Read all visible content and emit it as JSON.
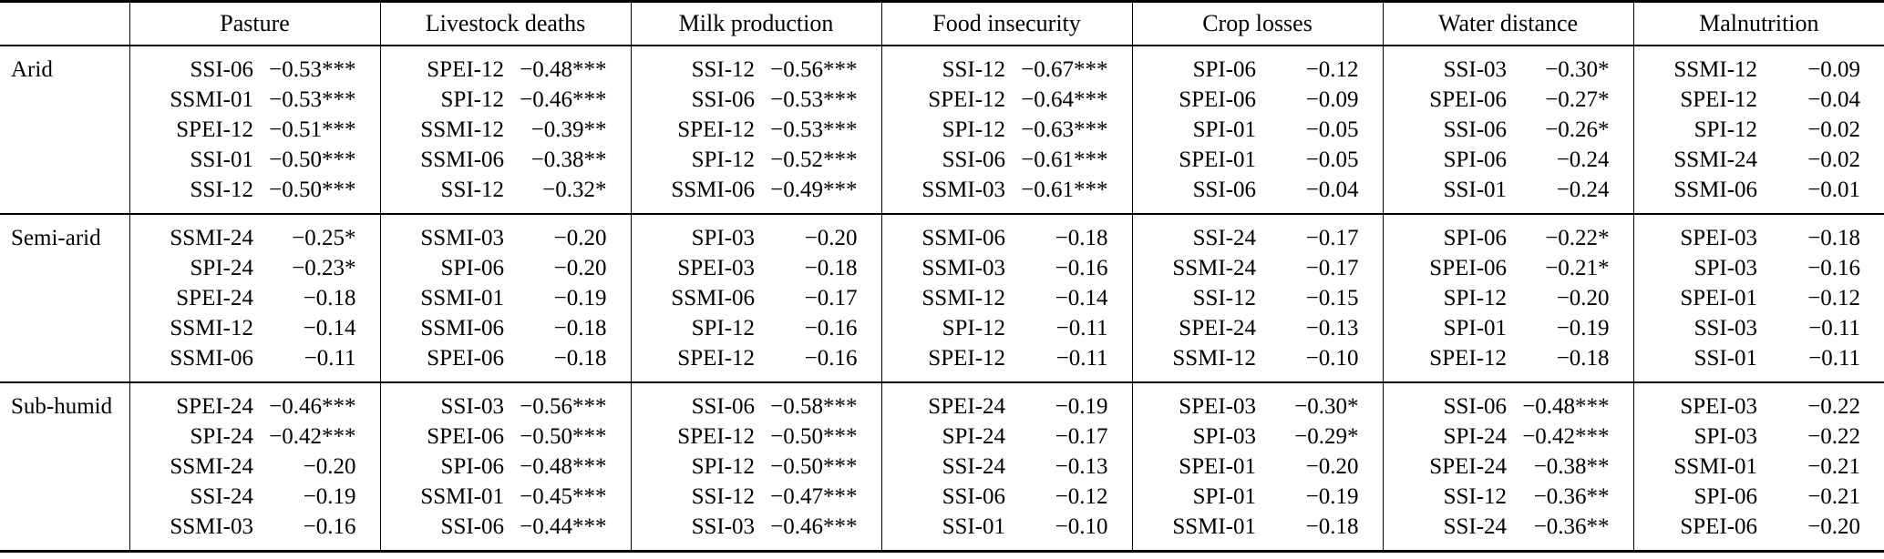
{
  "table": {
    "corner_label": "",
    "columns": [
      "Pasture",
      "Livestock deaths",
      "Milk production",
      "Food insecurity",
      "Crop losses",
      "Water distance",
      "Malnutrition"
    ],
    "groups": [
      {
        "label": "Arid",
        "rows": [
          [
            [
              "SSI-06",
              "−0.53***"
            ],
            [
              "SPEI-12",
              "−0.48***"
            ],
            [
              "SSI-12",
              "−0.56***"
            ],
            [
              "SSI-12",
              "−0.67***"
            ],
            [
              "SPI-06",
              "−0.12"
            ],
            [
              "SSI-03",
              "−0.30*"
            ],
            [
              "SSMI-12",
              "−0.09"
            ]
          ],
          [
            [
              "SSMI-01",
              "−0.53***"
            ],
            [
              "SPI-12",
              "−0.46***"
            ],
            [
              "SSI-06",
              "−0.53***"
            ],
            [
              "SPEI-12",
              "−0.64***"
            ],
            [
              "SPEI-06",
              "−0.09"
            ],
            [
              "SPEI-06",
              "−0.27*"
            ],
            [
              "SPEI-12",
              "−0.04"
            ]
          ],
          [
            [
              "SPEI-12",
              "−0.51***"
            ],
            [
              "SSMI-12",
              "−0.39**"
            ],
            [
              "SPEI-12",
              "−0.53***"
            ],
            [
              "SPI-12",
              "−0.63***"
            ],
            [
              "SPI-01",
              "−0.05"
            ],
            [
              "SSI-06",
              "−0.26*"
            ],
            [
              "SPI-12",
              "−0.02"
            ]
          ],
          [
            [
              "SSI-01",
              "−0.50***"
            ],
            [
              "SSMI-06",
              "−0.38**"
            ],
            [
              "SPI-12",
              "−0.52***"
            ],
            [
              "SSI-06",
              "−0.61***"
            ],
            [
              "SPEI-01",
              "−0.05"
            ],
            [
              "SPI-06",
              "−0.24"
            ],
            [
              "SSMI-24",
              "−0.02"
            ]
          ],
          [
            [
              "SSI-12",
              "−0.50***"
            ],
            [
              "SSI-12",
              "−0.32*"
            ],
            [
              "SSMI-06",
              "−0.49***"
            ],
            [
              "SSMI-03",
              "−0.61***"
            ],
            [
              "SSI-06",
              "−0.04"
            ],
            [
              "SSI-01",
              "−0.24"
            ],
            [
              "SSMI-06",
              "−0.01"
            ]
          ]
        ]
      },
      {
        "label": "Semi-arid",
        "rows": [
          [
            [
              "SSMI-24",
              "−0.25*"
            ],
            [
              "SSMI-03",
              "−0.20"
            ],
            [
              "SPI-03",
              "−0.20"
            ],
            [
              "SSMI-06",
              "−0.18"
            ],
            [
              "SSI-24",
              "−0.17"
            ],
            [
              "SPI-06",
              "−0.22*"
            ],
            [
              "SPEI-03",
              "−0.18"
            ]
          ],
          [
            [
              "SPI-24",
              "−0.23*"
            ],
            [
              "SPI-06",
              "−0.20"
            ],
            [
              "SPEI-03",
              "−0.18"
            ],
            [
              "SSMI-03",
              "−0.16"
            ],
            [
              "SSMI-24",
              "−0.17"
            ],
            [
              "SPEI-06",
              "−0.21*"
            ],
            [
              "SPI-03",
              "−0.16"
            ]
          ],
          [
            [
              "SPEI-24",
              "−0.18"
            ],
            [
              "SSMI-01",
              "−0.19"
            ],
            [
              "SSMI-06",
              "−0.17"
            ],
            [
              "SSMI-12",
              "−0.14"
            ],
            [
              "SSI-12",
              "−0.15"
            ],
            [
              "SPI-12",
              "−0.20"
            ],
            [
              "SPEI-01",
              "−0.12"
            ]
          ],
          [
            [
              "SSMI-12",
              "−0.14"
            ],
            [
              "SSMI-06",
              "−0.18"
            ],
            [
              "SPI-12",
              "−0.16"
            ],
            [
              "SPI-12",
              "−0.11"
            ],
            [
              "SPEI-24",
              "−0.13"
            ],
            [
              "SPI-01",
              "−0.19"
            ],
            [
              "SSI-03",
              "−0.11"
            ]
          ],
          [
            [
              "SSMI-06",
              "−0.11"
            ],
            [
              "SPEI-06",
              "−0.18"
            ],
            [
              "SPEI-12",
              "−0.16"
            ],
            [
              "SPEI-12",
              "−0.11"
            ],
            [
              "SSMI-12",
              "−0.10"
            ],
            [
              "SPEI-12",
              "−0.18"
            ],
            [
              "SSI-01",
              "−0.11"
            ]
          ]
        ]
      },
      {
        "label": "Sub-humid",
        "rows": [
          [
            [
              "SPEI-24",
              "−0.46***"
            ],
            [
              "SSI-03",
              "−0.56***"
            ],
            [
              "SSI-06",
              "−0.58***"
            ],
            [
              "SPEI-24",
              "−0.19"
            ],
            [
              "SPEI-03",
              "−0.30*"
            ],
            [
              "SSI-06",
              "−0.48***"
            ],
            [
              "SPEI-03",
              "−0.22"
            ]
          ],
          [
            [
              "SPI-24",
              "−0.42***"
            ],
            [
              "SPEI-06",
              "−0.50***"
            ],
            [
              "SPEI-12",
              "−0.50***"
            ],
            [
              "SPI-24",
              "−0.17"
            ],
            [
              "SPI-03",
              "−0.29*"
            ],
            [
              "SPI-24",
              "−0.42***"
            ],
            [
              "SPI-03",
              "−0.22"
            ]
          ],
          [
            [
              "SSMI-24",
              "−0.20"
            ],
            [
              "SPI-06",
              "−0.48***"
            ],
            [
              "SPI-12",
              "−0.50***"
            ],
            [
              "SSI-24",
              "−0.13"
            ],
            [
              "SPEI-01",
              "−0.20"
            ],
            [
              "SPEI-24",
              "−0.38**"
            ],
            [
              "SSMI-01",
              "−0.21"
            ]
          ],
          [
            [
              "SSI-24",
              "−0.19"
            ],
            [
              "SSMI-01",
              "−0.45***"
            ],
            [
              "SSI-12",
              "−0.47***"
            ],
            [
              "SSI-06",
              "−0.12"
            ],
            [
              "SPI-01",
              "−0.19"
            ],
            [
              "SSI-12",
              "−0.36**"
            ],
            [
              "SPI-06",
              "−0.21"
            ]
          ],
          [
            [
              "SSMI-03",
              "−0.16"
            ],
            [
              "SSI-06",
              "−0.44***"
            ],
            [
              "SSI-03",
              "−0.46***"
            ],
            [
              "SSI-01",
              "−0.10"
            ],
            [
              "SSMI-01",
              "−0.18"
            ],
            [
              "SSI-24",
              "−0.36**"
            ],
            [
              "SPEI-06",
              "−0.20"
            ]
          ]
        ]
      }
    ]
  },
  "colors": {
    "text": "#000000",
    "background": "#ffffff",
    "rule": "#000000"
  }
}
